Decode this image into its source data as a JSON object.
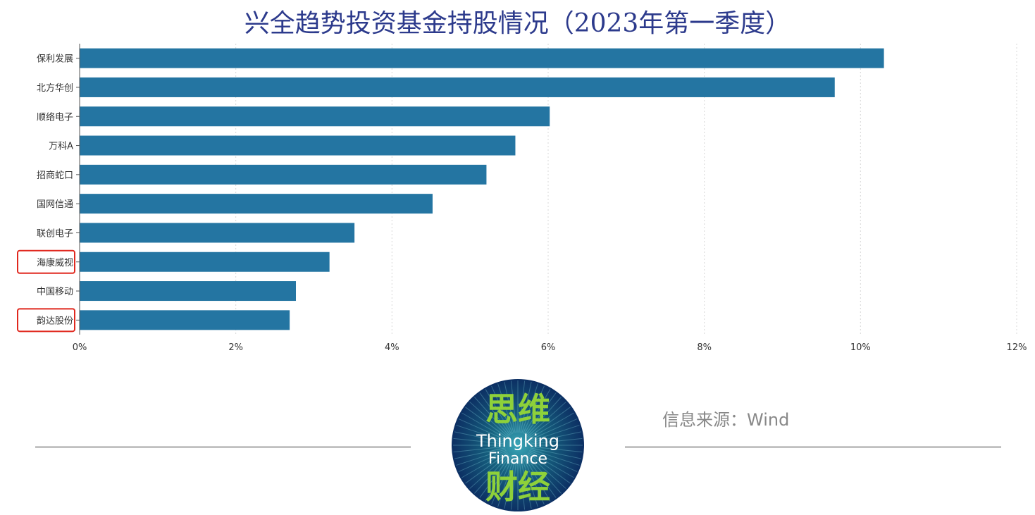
{
  "title": "兴全趋势投资基金持股情况（2023年第一季度）",
  "source": "信息来源：Wind",
  "logo": {
    "top_text": "思维",
    "line1": "Thingking",
    "line2": "Finance",
    "bottom_text": "财经"
  },
  "chart_data": {
    "type": "bar",
    "orientation": "horizontal",
    "categories": [
      "保利发展",
      "北方华创",
      "顺络电子",
      "万科A",
      "招商蛇口",
      "国网信通",
      "联创电子",
      "海康威视",
      "中国移动",
      "韵达股份"
    ],
    "values": [
      10.3,
      9.67,
      6.02,
      5.58,
      5.21,
      4.52,
      3.52,
      3.2,
      2.77,
      2.69
    ],
    "xlim": [
      0,
      12
    ],
    "xticks": [
      "0%",
      "2%",
      "4%",
      "6%",
      "8%",
      "10%",
      "12%"
    ],
    "highlighted": [
      "海康威视",
      "韵达股份"
    ],
    "bar_color": "#2475a2",
    "highlight_color": "#e0281e",
    "grid": "vertical dotted"
  }
}
